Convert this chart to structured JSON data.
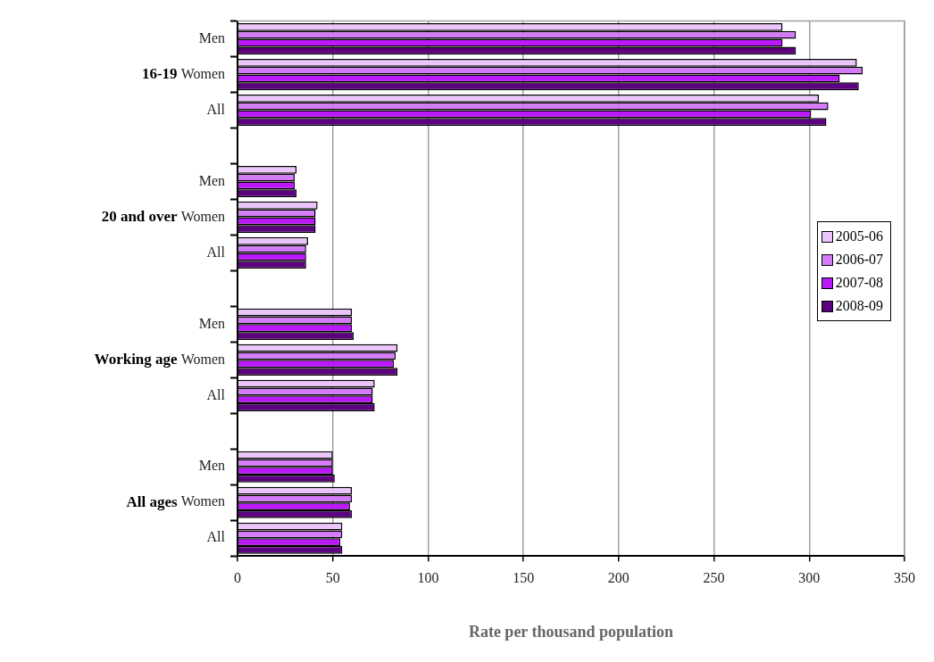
{
  "chart_data": {
    "type": "bar",
    "orientation": "horizontal",
    "xlabel": "Rate per thousand population",
    "categories": [
      "Men",
      "Women",
      "All",
      null,
      "Men",
      "Women",
      "All",
      null,
      "Men",
      "Women",
      "All",
      null,
      "Men",
      "Women",
      "All"
    ],
    "annotations": [
      "16-19",
      "20 and over",
      "Working age",
      "All ages"
    ],
    "series": [
      {
        "name": "2005-06",
        "color": "#ebc4fc",
        "values": [
          286,
          325,
          305,
          null,
          31,
          42,
          37,
          null,
          60,
          84,
          72,
          null,
          50,
          60,
          55
        ]
      },
      {
        "name": "2006-07",
        "color": "#d47cf7",
        "values": [
          293,
          328,
          310,
          null,
          30,
          41,
          36,
          null,
          60,
          83,
          71,
          null,
          50,
          60,
          55
        ]
      },
      {
        "name": "2007-08",
        "color": "#bb19fc",
        "values": [
          286,
          316,
          301,
          null,
          30,
          41,
          36,
          null,
          60,
          82,
          71,
          null,
          50,
          59,
          54
        ]
      },
      {
        "name": "2008-09",
        "color": "#5c0080",
        "values": [
          293,
          326,
          309,
          null,
          31,
          41,
          36,
          null,
          61,
          84,
          72,
          null,
          51,
          60,
          55
        ]
      }
    ],
    "xlim": [
      0,
      350
    ],
    "xticks": [
      0,
      50,
      100,
      150,
      200,
      250,
      300,
      350
    ],
    "grid": "x",
    "legend": "right"
  }
}
